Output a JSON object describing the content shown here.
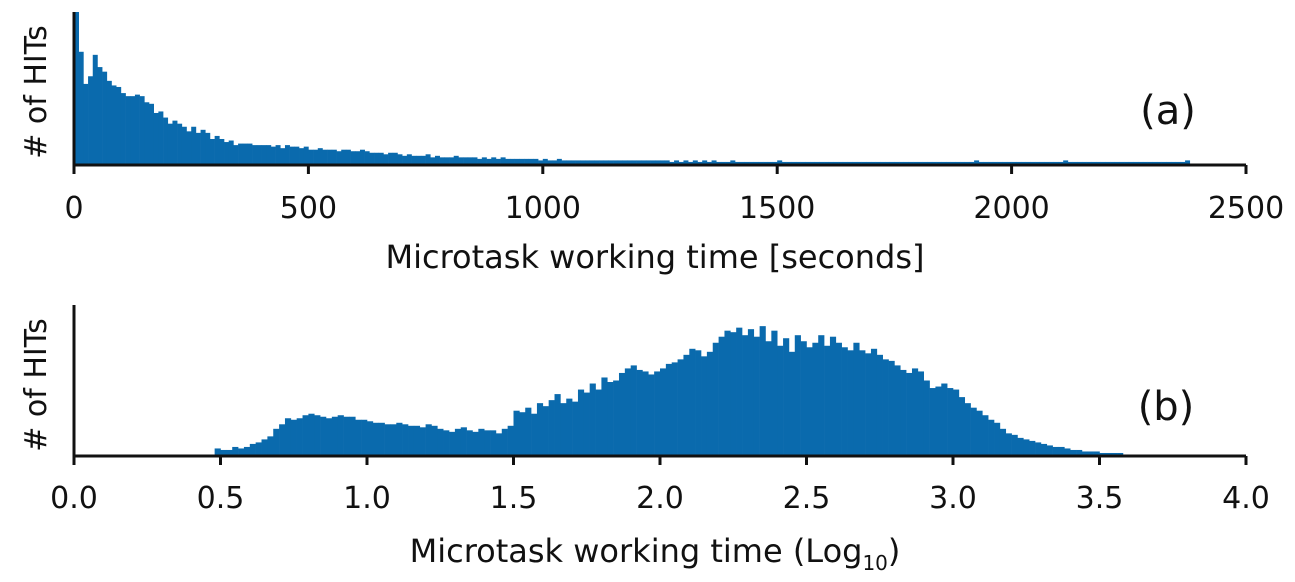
{
  "colors": {
    "bar": "#0a6aad",
    "axis": "#111111"
  },
  "chart_data": [
    {
      "type": "bar",
      "panel_label": "(a)",
      "xlabel": "Microtask working time [seconds]",
      "ylabel": "# of HITs",
      "xlim": [
        0,
        2500
      ],
      "ylim": [
        0,
        100
      ],
      "xticks": [
        "0",
        "500",
        "1000",
        "1500",
        "2000",
        "2500"
      ],
      "xtick_values": [
        0,
        500,
        1000,
        1500,
        2000,
        2500
      ],
      "bin_width": 10,
      "bin_starts": [
        0,
        10,
        20,
        30,
        40,
        50,
        60,
        70,
        80,
        90,
        100,
        110,
        120,
        130,
        140,
        150,
        160,
        170,
        180,
        190,
        200,
        210,
        220,
        230,
        240,
        250,
        260,
        270,
        280,
        290,
        300,
        310,
        320,
        330,
        340,
        350,
        360,
        370,
        380,
        390,
        400,
        410,
        420,
        430,
        440,
        450,
        460,
        470,
        480,
        490,
        500,
        510,
        520,
        530,
        540,
        550,
        560,
        570,
        580,
        590,
        600,
        610,
        620,
        630,
        640,
        650,
        660,
        670,
        680,
        690,
        700,
        710,
        720,
        730,
        740,
        750,
        760,
        770,
        780,
        790,
        800,
        810,
        820,
        830,
        840,
        850,
        860,
        870,
        880,
        890,
        900,
        910,
        920,
        930,
        940,
        950,
        960,
        970,
        980,
        990,
        1000,
        1010,
        1020,
        1030,
        1040,
        1050,
        1060,
        1070,
        1080,
        1090,
        1100,
        1110,
        1120,
        1130,
        1140,
        1150,
        1160,
        1170,
        1180,
        1190,
        1200,
        1210,
        1220,
        1230,
        1240,
        1250,
        1260,
        1270,
        1280,
        1290,
        1300,
        1310,
        1320,
        1330,
        1340,
        1350,
        1360,
        1370,
        1380,
        1390,
        1400,
        1410,
        1420,
        1430,
        1440,
        1450,
        1460,
        1470,
        1480,
        1490,
        1500,
        1510,
        1520,
        1530,
        1540,
        1550,
        1560,
        1570,
        1580,
        1590,
        1600,
        1610,
        1620,
        1630,
        1640,
        1650,
        1660,
        1670,
        1680,
        1690,
        1700,
        1710,
        1720,
        1730,
        1740,
        1750,
        1760,
        1770,
        1780,
        1790,
        1800,
        1810,
        1820,
        1830,
        1840,
        1850,
        1860,
        1870,
        1880,
        1890,
        1900,
        1910,
        1920,
        1930,
        1940,
        1950,
        1960,
        1970,
        1980,
        1990,
        2000,
        2010,
        2020,
        2030,
        2040,
        2050,
        2060,
        2070,
        2080,
        2090,
        2100,
        2110,
        2120,
        2130,
        2140,
        2150,
        2160,
        2170,
        2180,
        2190,
        2200,
        2210,
        2220,
        2230,
        2240,
        2250,
        2260,
        2270,
        2280,
        2290,
        2300,
        2310,
        2320,
        2330,
        2340,
        2350,
        2360,
        2370
      ],
      "values": [
        100,
        74,
        53,
        58,
        72,
        64,
        61,
        55,
        52,
        51,
        47,
        45,
        45,
        46,
        45,
        41,
        40,
        34,
        35,
        31,
        27,
        29,
        27,
        25,
        22,
        25,
        21,
        23,
        21,
        17,
        19,
        17,
        15,
        16,
        13,
        14,
        14,
        14,
        13,
        13,
        13,
        13,
        12,
        13,
        11,
        13,
        12,
        12,
        11,
        12,
        10,
        10,
        11,
        10,
        10,
        10,
        9,
        10,
        10,
        9,
        9,
        10,
        9,
        8,
        8,
        8,
        7,
        8,
        8,
        7,
        6,
        7,
        6,
        6,
        6,
        7,
        5,
        6,
        5,
        5,
        5,
        6,
        5,
        5,
        5,
        5,
        4,
        5,
        4,
        5,
        4,
        5,
        4,
        4,
        4,
        4,
        4,
        4,
        4,
        3,
        4,
        3,
        3,
        4,
        3,
        3,
        3,
        3,
        3,
        3,
        3,
        3,
        3,
        3,
        3,
        3,
        3,
        3,
        3,
        3,
        3,
        3,
        3,
        3,
        3,
        3,
        3,
        2,
        3,
        2,
        3,
        2,
        3,
        2,
        3,
        2,
        3,
        2,
        2,
        2,
        3,
        2,
        2,
        2,
        2,
        2,
        2,
        2,
        2,
        2,
        3,
        2,
        2,
        2,
        2,
        2,
        2,
        2,
        2,
        2,
        2,
        2,
        2,
        2,
        2,
        2,
        2,
        2,
        2,
        2,
        2,
        2,
        2,
        2,
        2,
        2,
        2,
        2,
        2,
        2,
        2,
        2,
        2,
        2,
        2,
        2,
        2,
        2,
        2,
        2,
        2,
        2,
        3,
        2,
        2,
        2,
        2,
        2,
        2,
        2,
        2,
        2,
        2,
        2,
        2,
        2,
        2,
        2,
        2,
        2,
        2,
        3,
        2,
        2,
        2,
        2,
        2,
        2,
        2,
        2,
        2,
        2,
        2,
        2,
        2,
        2,
        2,
        2,
        2,
        2,
        2,
        2,
        2,
        2,
        2,
        2,
        2,
        3
      ]
    },
    {
      "type": "bar",
      "panel_label": "(b)",
      "xlabel": "Microtask working time (Log",
      "xlabel_sub": "10",
      "xlabel_end": ")",
      "ylabel": "# of HITs",
      "xlim": [
        0.0,
        4.0
      ],
      "ylim": [
        0,
        100
      ],
      "xticks": [
        "0.0",
        "0.5",
        "1.0",
        "1.5",
        "2.0",
        "2.5",
        "3.0",
        "3.5",
        "4.0"
      ],
      "xtick_values": [
        0.0,
        0.5,
        1.0,
        1.5,
        2.0,
        2.5,
        3.0,
        3.5,
        4.0
      ],
      "bin_width": 0.02,
      "bin_starts": [
        0.48,
        0.5,
        0.52,
        0.54,
        0.56,
        0.58,
        0.6,
        0.62,
        0.64,
        0.66,
        0.68,
        0.7,
        0.72,
        0.74,
        0.76,
        0.78,
        0.8,
        0.82,
        0.84,
        0.86,
        0.88,
        0.9,
        0.92,
        0.94,
        0.96,
        0.98,
        1.0,
        1.02,
        1.04,
        1.06,
        1.08,
        1.1,
        1.12,
        1.14,
        1.16,
        1.18,
        1.2,
        1.22,
        1.24,
        1.26,
        1.28,
        1.3,
        1.32,
        1.34,
        1.36,
        1.38,
        1.4,
        1.42,
        1.44,
        1.46,
        1.48,
        1.5,
        1.52,
        1.54,
        1.56,
        1.58,
        1.6,
        1.62,
        1.64,
        1.66,
        1.68,
        1.7,
        1.72,
        1.74,
        1.76,
        1.78,
        1.8,
        1.82,
        1.84,
        1.86,
        1.88,
        1.9,
        1.92,
        1.94,
        1.96,
        1.98,
        2.0,
        2.02,
        2.04,
        2.06,
        2.08,
        2.1,
        2.12,
        2.14,
        2.16,
        2.18,
        2.2,
        2.22,
        2.24,
        2.26,
        2.28,
        2.3,
        2.32,
        2.34,
        2.36,
        2.38,
        2.4,
        2.42,
        2.44,
        2.46,
        2.48,
        2.5,
        2.52,
        2.54,
        2.56,
        2.58,
        2.6,
        2.62,
        2.64,
        2.66,
        2.68,
        2.7,
        2.72,
        2.74,
        2.76,
        2.78,
        2.8,
        2.82,
        2.84,
        2.86,
        2.88,
        2.9,
        2.92,
        2.94,
        2.96,
        2.98,
        3.0,
        3.02,
        3.04,
        3.06,
        3.08,
        3.1,
        3.12,
        3.14,
        3.16,
        3.18,
        3.2,
        3.22,
        3.24,
        3.26,
        3.28,
        3.3,
        3.32,
        3.34,
        3.36,
        3.38,
        3.4,
        3.42,
        3.44,
        3.46,
        3.48,
        3.5,
        3.52,
        3.54,
        3.56,
        3.58,
        3.6
      ],
      "values": [
        5,
        4,
        4,
        6,
        5,
        6,
        8,
        9,
        11,
        13,
        18,
        21,
        25,
        24,
        25,
        27,
        28,
        27,
        26,
        25,
        26,
        27,
        26,
        26,
        24,
        24,
        23,
        22,
        22,
        21,
        21,
        22,
        21,
        20,
        20,
        19,
        21,
        20,
        18,
        17,
        16,
        18,
        19,
        17,
        16,
        18,
        17,
        17,
        15,
        18,
        20,
        30,
        29,
        32,
        28,
        35,
        33,
        37,
        41,
        35,
        38,
        36,
        44,
        42,
        48,
        44,
        52,
        49,
        50,
        55,
        58,
        60,
        57,
        56,
        54,
        56,
        58,
        61,
        62,
        64,
        67,
        71,
        70,
        66,
        69,
        75,
        79,
        83,
        82,
        85,
        80,
        84,
        79,
        86,
        76,
        83,
        73,
        78,
        69,
        80,
        76,
        72,
        75,
        80,
        73,
        79,
        75,
        72,
        70,
        75,
        70,
        68,
        71,
        67,
        64,
        63,
        60,
        57,
        55,
        58,
        56,
        50,
        45,
        46,
        48,
        45,
        44,
        39,
        35,
        32,
        30,
        27,
        24,
        22,
        18,
        15,
        14,
        12,
        11,
        10,
        9,
        8,
        7,
        6,
        6,
        5,
        4,
        4,
        3,
        3,
        3,
        2,
        2,
        2,
        2,
        1
      ]
    }
  ]
}
